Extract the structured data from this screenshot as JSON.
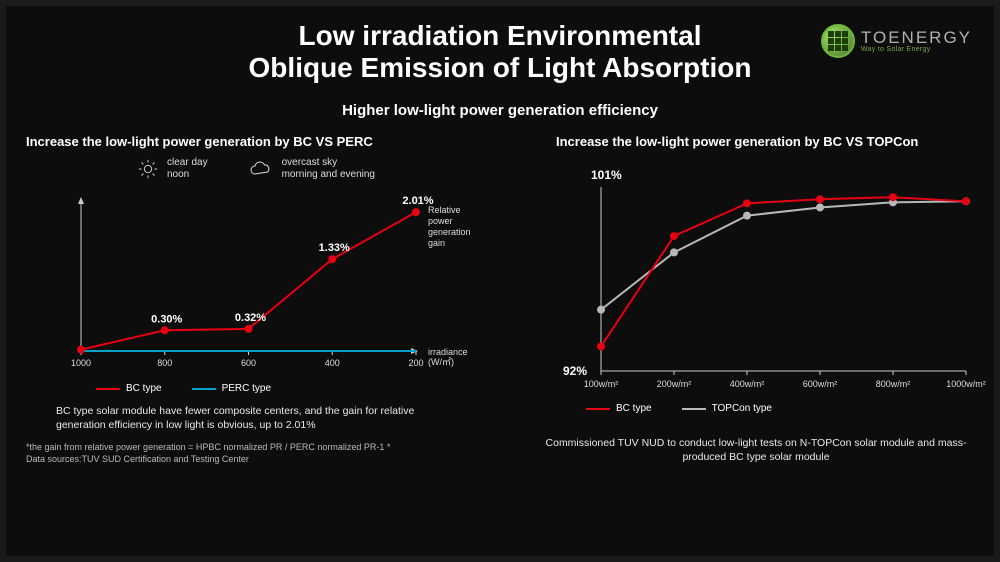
{
  "logo": {
    "brand": "TOENERGY",
    "tagline": "Way to Solar Energy"
  },
  "title": {
    "line1": "Low irradiation Environmental",
    "line2": "Oblique Emission of Light Absorption"
  },
  "subtitle": "Higher low-light power generation efficiency",
  "colors": {
    "background": "#0d0d0d",
    "text": "#ffffff",
    "bc_series": "#e60012",
    "perc_series": "#00a0c8",
    "topcon_series": "#b8b8b8",
    "axis": "#cccccc",
    "marker_fill": "#ffffff"
  },
  "left_panel": {
    "title": "Increase the low-light power generation by BC VS PERC",
    "weather": {
      "clear": {
        "line1": "clear day",
        "line2": "noon"
      },
      "overcast": {
        "line1": "overcast sky",
        "line2": "morning and evening"
      }
    },
    "chart": {
      "type": "line",
      "x_label": "irradiance\n(W/㎡)",
      "y_label_lines": [
        "Relative",
        "power",
        "generation",
        "gain"
      ],
      "x_ticks": [
        "1000",
        "800",
        "600",
        "400",
        "200"
      ],
      "x_positions": [
        0,
        1,
        2,
        3,
        4
      ],
      "xlim": [
        0,
        4
      ],
      "ylim": [
        0,
        2.2
      ],
      "bc_series": {
        "name": "BC type",
        "values": [
          0.02,
          0.3,
          0.32,
          1.33,
          2.01
        ],
        "point_labels": [
          "",
          "0.30%",
          "0.32%",
          "1.33%",
          "2.01%"
        ],
        "color": "#e60012",
        "line_width": 2,
        "marker": "circle",
        "marker_size": 4
      },
      "perc_series": {
        "name": "PERC type",
        "values": [
          0,
          0,
          0,
          0,
          0
        ],
        "color": "#00a0c8",
        "line_width": 2
      },
      "axis_fontsize": 9,
      "label_fontsize": 9
    },
    "legend": [
      {
        "label": "BC type",
        "color": "#e60012"
      },
      {
        "label": "PERC type",
        "color": "#00a0c8"
      }
    ],
    "caption": "BC type solar module have fewer composite centers, and the gain for relative generation efficiency  in low light is obvious, up to 2.01%",
    "footnote1": "*the gain from relative power generation = HPBC normalized PR / PERC normalized PR-1 *",
    "footnote2": "Data sources:TUV SUD Certification and Testing Center"
  },
  "right_panel": {
    "title": "Increase the low-light power generation by BC VS TOPCon",
    "chart": {
      "type": "line",
      "x_ticks": [
        "100w/m²",
        "200w/m²",
        "400w/m²",
        "600w/m²",
        "800w/m²",
        "1000w/m²"
      ],
      "x_positions": [
        0,
        1,
        2,
        3,
        4,
        5
      ],
      "xlim": [
        0,
        5
      ],
      "ylim": [
        92,
        101
      ],
      "y_top_label": "101%",
      "y_bottom_label": "92%",
      "bc_series": {
        "name": "BC type",
        "values": [
          93.2,
          98.6,
          100.2,
          100.4,
          100.5,
          100.3
        ],
        "color": "#e60012",
        "line_width": 2,
        "marker_size": 4
      },
      "topcon_series": {
        "name": "TOPCon type",
        "values": [
          95.0,
          97.8,
          99.6,
          100.0,
          100.25,
          100.3
        ],
        "color": "#b8b8b8",
        "line_width": 2,
        "marker_size": 4
      },
      "axis_fontsize": 9
    },
    "legend": [
      {
        "label": "BC type",
        "color": "#e60012"
      },
      {
        "label": "TOPCon type",
        "color": "#b8b8b8"
      }
    ],
    "caption": "Commissioned TUV NUD to conduct low-light tests on N-TOPCon solar module and mass-produced BC type solar module"
  }
}
